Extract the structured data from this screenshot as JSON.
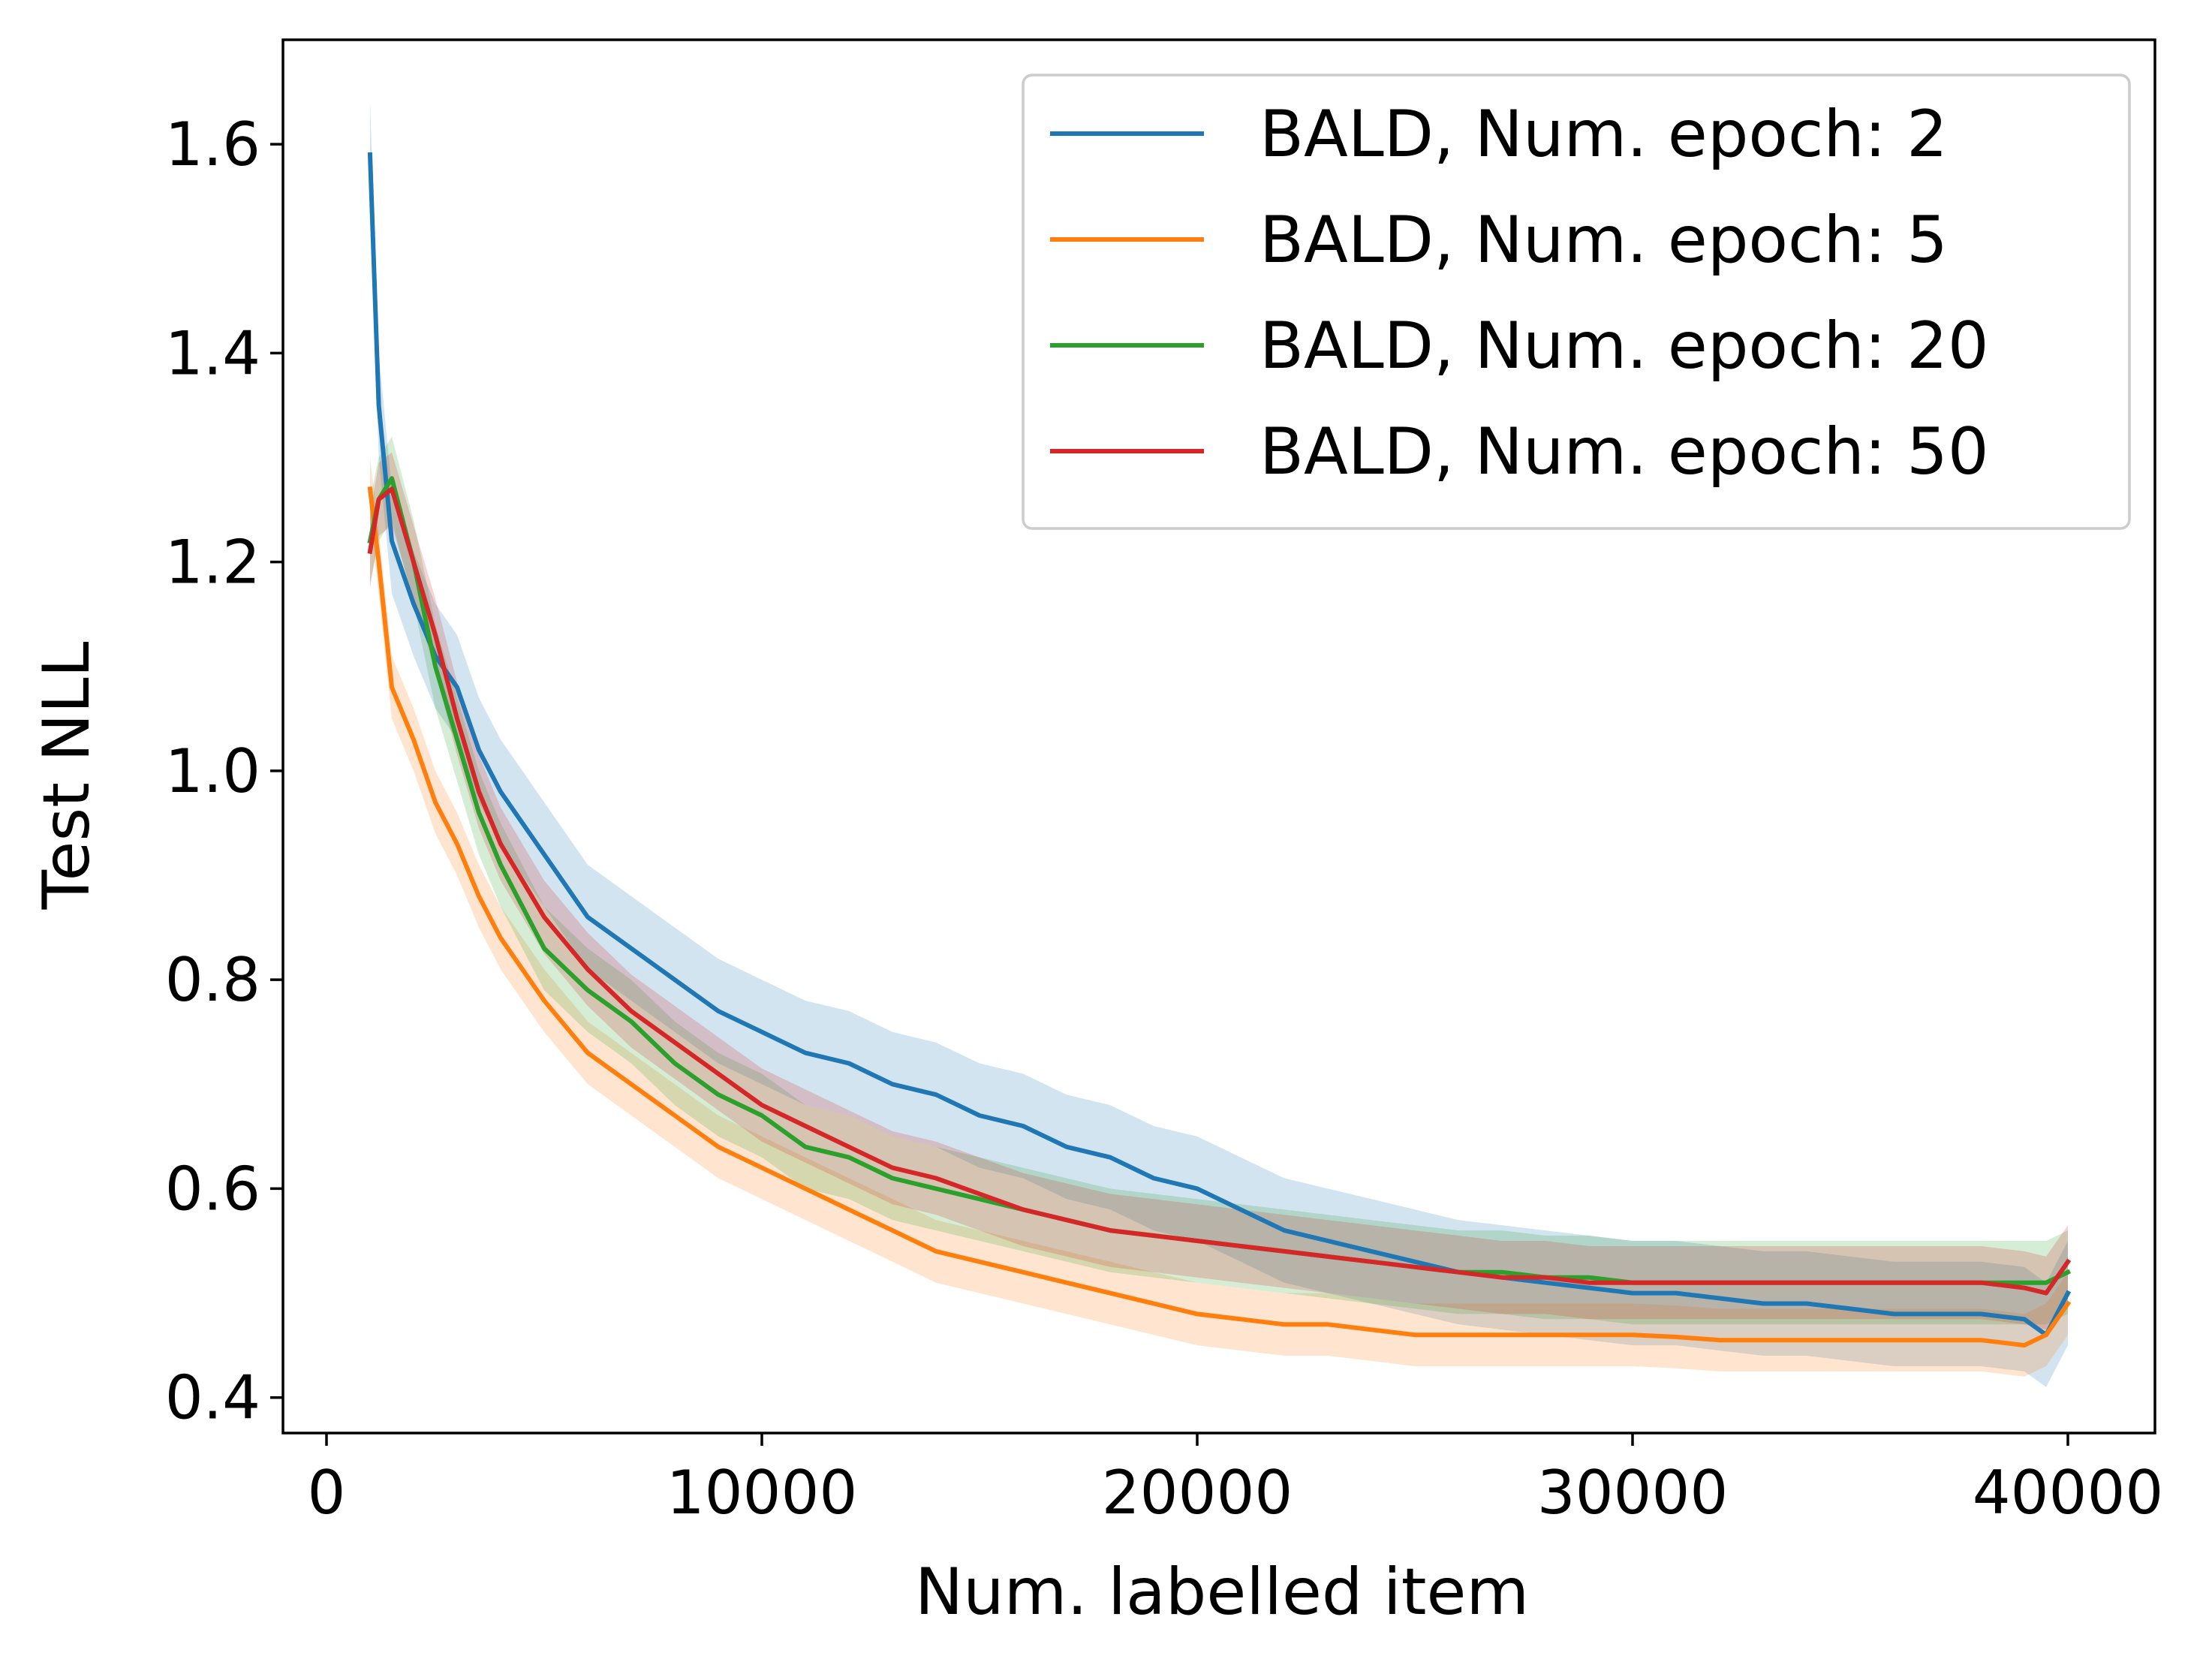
{
  "chart_data": {
    "type": "line",
    "title": "",
    "xlabel": "Num. labelled item",
    "ylabel": "Test NLL",
    "xlim": [
      -1000,
      42000
    ],
    "ylim": [
      0.366,
      1.7
    ],
    "xticks": [
      0,
      10000,
      20000,
      30000,
      40000
    ],
    "yticks": [
      0.4,
      0.6,
      0.8,
      1.0,
      1.2,
      1.4,
      1.6
    ],
    "xtick_labels": [
      "0",
      "10000",
      "20000",
      "30000",
      "40000"
    ],
    "ytick_labels": [
      "0.4",
      "0.6",
      "0.8",
      "1.0",
      "1.2",
      "1.4",
      "1.6"
    ],
    "grid": false,
    "legend_position": "top-right",
    "series": [
      {
        "name": "BALD, Num. epoch: 2",
        "color": "#1f77b4",
        "band": 0.05,
        "x": [
          1000,
          1200,
          1500,
          2000,
          2500,
          3000,
          3500,
          4000,
          5000,
          6000,
          7000,
          8000,
          9000,
          10000,
          11000,
          12000,
          13000,
          14000,
          15000,
          16000,
          17000,
          18000,
          19000,
          20000,
          21000,
          22000,
          23000,
          24000,
          25000,
          26000,
          27000,
          28000,
          29000,
          30000,
          31000,
          32000,
          33000,
          34000,
          35000,
          36000,
          37000,
          38000,
          39000,
          39500,
          40000
        ],
        "y": [
          1.59,
          1.35,
          1.22,
          1.16,
          1.11,
          1.08,
          1.02,
          0.98,
          0.92,
          0.86,
          0.83,
          0.8,
          0.77,
          0.75,
          0.73,
          0.72,
          0.7,
          0.69,
          0.67,
          0.66,
          0.64,
          0.63,
          0.61,
          0.6,
          0.58,
          0.56,
          0.55,
          0.54,
          0.53,
          0.52,
          0.515,
          0.51,
          0.505,
          0.5,
          0.5,
          0.495,
          0.49,
          0.49,
          0.485,
          0.48,
          0.48,
          0.48,
          0.475,
          0.46,
          0.5
        ]
      },
      {
        "name": "BALD, Num. epoch: 5",
        "color": "#ff7f0e",
        "band": 0.03,
        "x": [
          1000,
          1200,
          1500,
          2000,
          2500,
          3000,
          3500,
          4000,
          5000,
          6000,
          7000,
          8000,
          9000,
          10000,
          11000,
          12000,
          13000,
          14000,
          15000,
          16000,
          17000,
          18000,
          19000,
          20000,
          21000,
          22000,
          23000,
          24000,
          25000,
          26000,
          27000,
          28000,
          29000,
          30000,
          31000,
          32000,
          33000,
          34000,
          35000,
          36000,
          37000,
          38000,
          39000,
          39500,
          40000
        ],
        "y": [
          1.27,
          1.2,
          1.08,
          1.03,
          0.97,
          0.93,
          0.88,
          0.84,
          0.78,
          0.73,
          0.7,
          0.67,
          0.64,
          0.62,
          0.6,
          0.58,
          0.56,
          0.54,
          0.53,
          0.52,
          0.51,
          0.5,
          0.49,
          0.48,
          0.475,
          0.47,
          0.47,
          0.465,
          0.46,
          0.46,
          0.46,
          0.46,
          0.46,
          0.46,
          0.458,
          0.455,
          0.455,
          0.455,
          0.455,
          0.455,
          0.455,
          0.455,
          0.45,
          0.46,
          0.49
        ]
      },
      {
        "name": "BALD, Num. epoch: 20",
        "color": "#2ca02c",
        "band": 0.04,
        "x": [
          1000,
          1200,
          1500,
          2000,
          2500,
          3000,
          3500,
          4000,
          5000,
          6000,
          7000,
          8000,
          9000,
          10000,
          11000,
          12000,
          13000,
          14000,
          15000,
          16000,
          17000,
          18000,
          19000,
          20000,
          21000,
          22000,
          23000,
          24000,
          25000,
          26000,
          27000,
          28000,
          29000,
          30000,
          31000,
          32000,
          33000,
          34000,
          35000,
          36000,
          37000,
          38000,
          39000,
          39500,
          40000
        ],
        "y": [
          1.22,
          1.26,
          1.28,
          1.2,
          1.1,
          1.03,
          0.96,
          0.91,
          0.83,
          0.79,
          0.76,
          0.72,
          0.69,
          0.67,
          0.64,
          0.63,
          0.61,
          0.6,
          0.59,
          0.58,
          0.57,
          0.56,
          0.555,
          0.55,
          0.545,
          0.54,
          0.535,
          0.53,
          0.525,
          0.52,
          0.52,
          0.515,
          0.515,
          0.51,
          0.51,
          0.51,
          0.51,
          0.51,
          0.51,
          0.51,
          0.51,
          0.51,
          0.51,
          0.51,
          0.52
        ]
      },
      {
        "name": "BALD, Num. epoch: 50",
        "color": "#d62728",
        "band": 0.035,
        "x": [
          1000,
          1200,
          1500,
          2000,
          2500,
          3000,
          3500,
          4000,
          5000,
          6000,
          7000,
          8000,
          9000,
          10000,
          11000,
          12000,
          13000,
          14000,
          15000,
          16000,
          17000,
          18000,
          19000,
          20000,
          21000,
          22000,
          23000,
          24000,
          25000,
          26000,
          27000,
          28000,
          29000,
          30000,
          31000,
          32000,
          33000,
          34000,
          35000,
          36000,
          37000,
          38000,
          39000,
          39500,
          40000
        ],
        "y": [
          1.21,
          1.26,
          1.27,
          1.2,
          1.13,
          1.05,
          0.98,
          0.93,
          0.86,
          0.81,
          0.77,
          0.74,
          0.71,
          0.68,
          0.66,
          0.64,
          0.62,
          0.61,
          0.595,
          0.58,
          0.57,
          0.56,
          0.555,
          0.55,
          0.545,
          0.54,
          0.535,
          0.53,
          0.525,
          0.52,
          0.515,
          0.515,
          0.51,
          0.51,
          0.51,
          0.51,
          0.51,
          0.51,
          0.51,
          0.51,
          0.51,
          0.51,
          0.505,
          0.5,
          0.53
        ]
      }
    ]
  }
}
